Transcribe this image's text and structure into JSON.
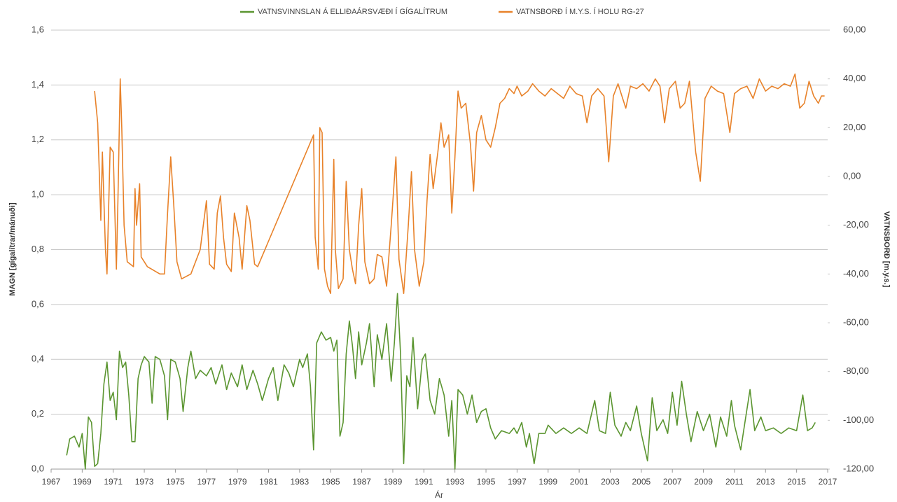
{
  "chart_data": {
    "type": "line",
    "xlabel": "Ár",
    "ylabel": "MAGN [gígalítrar/mánuði]",
    "y2label": "VATNSBORÐ [m.y.s.]",
    "xlim": [
      1967,
      2017
    ],
    "xticks": [
      1967,
      1969,
      1971,
      1973,
      1975,
      1977,
      1979,
      1981,
      1983,
      1985,
      1987,
      1989,
      1991,
      1993,
      1995,
      1997,
      1999,
      2001,
      2003,
      2005,
      2007,
      2009,
      2011,
      2013,
      2015,
      2017
    ],
    "ylim": [
      0,
      1.6
    ],
    "yticks": [
      {
        "value": 0,
        "label": "0,0"
      },
      {
        "value": 0.2,
        "label": "0,2"
      },
      {
        "value": 0.4,
        "label": "0,4"
      },
      {
        "value": 0.6,
        "label": "0,6"
      },
      {
        "value": 0.8,
        "label": "0,8"
      },
      {
        "value": 1.0,
        "label": "1,0"
      },
      {
        "value": 1.2,
        "label": "1,2"
      },
      {
        "value": 1.4,
        "label": "1,4"
      },
      {
        "value": 1.6,
        "label": "1,6"
      }
    ],
    "y2lim": [
      -120,
      60
    ],
    "y2ticks": [
      {
        "value": -120,
        "label": "-120,00"
      },
      {
        "value": -100,
        "label": "-100,00"
      },
      {
        "value": -80,
        "label": "-80,00"
      },
      {
        "value": -60,
        "label": "-60,00"
      },
      {
        "value": -40,
        "label": "-40,00"
      },
      {
        "value": -20,
        "label": "-20,00"
      },
      {
        "value": 0,
        "label": "0,00"
      },
      {
        "value": 20,
        "label": "20,00"
      },
      {
        "value": 40,
        "label": "40,00"
      },
      {
        "value": 60,
        "label": "60,00"
      }
    ],
    "grid": true,
    "legend": "top",
    "series": [
      {
        "name": "VATNSVINNSLAN Á ELLIÐAÁRSVÆÐI Í GÍGALÍTRUM",
        "color": "#5b9530",
        "axis": "y",
        "x": [
          1968.0,
          1968.2,
          1968.5,
          1968.8,
          1969.0,
          1969.2,
          1969.4,
          1969.6,
          1969.8,
          1970.0,
          1970.2,
          1970.4,
          1970.6,
          1970.8,
          1971.0,
          1971.2,
          1971.4,
          1971.6,
          1971.8,
          1972.0,
          1972.2,
          1972.4,
          1972.6,
          1972.8,
          1973.0,
          1973.3,
          1973.5,
          1973.7,
          1974.0,
          1974.3,
          1974.5,
          1974.7,
          1975.0,
          1975.3,
          1975.5,
          1975.8,
          1976.0,
          1976.3,
          1976.6,
          1977.0,
          1977.3,
          1977.6,
          1978.0,
          1978.3,
          1978.6,
          1979.0,
          1979.3,
          1979.6,
          1980.0,
          1980.3,
          1980.6,
          1981.0,
          1981.3,
          1981.6,
          1982.0,
          1982.3,
          1982.6,
          1983.0,
          1983.2,
          1983.5,
          1983.7,
          1983.9,
          1984.1,
          1984.4,
          1984.7,
          1985.0,
          1985.2,
          1985.4,
          1985.6,
          1985.8,
          1986.0,
          1986.2,
          1986.4,
          1986.6,
          1986.8,
          1987.0,
          1987.3,
          1987.5,
          1987.8,
          1988.0,
          1988.3,
          1988.6,
          1988.9,
          1989.1,
          1989.3,
          1989.5,
          1989.7,
          1989.9,
          1990.1,
          1990.3,
          1990.6,
          1990.9,
          1991.1,
          1991.4,
          1991.7,
          1992.0,
          1992.3,
          1992.6,
          1992.8,
          1993.0,
          1993.2,
          1993.5,
          1993.8,
          1994.1,
          1994.4,
          1994.7,
          1995.0,
          1995.3,
          1995.6,
          1996.0,
          1996.5,
          1996.8,
          1997.0,
          1997.3,
          1997.6,
          1997.8,
          1998.1,
          1998.4,
          1998.8,
          1999.0,
          1999.5,
          2000.0,
          2000.5,
          2001.0,
          2001.5,
          2002.0,
          2002.3,
          2002.7,
          2003.0,
          2003.3,
          2003.7,
          2004.0,
          2004.3,
          2004.7,
          2005.0,
          2005.4,
          2005.7,
          2006.0,
          2006.4,
          2006.7,
          2007.0,
          2007.3,
          2007.6,
          2007.9,
          2008.2,
          2008.6,
          2009.0,
          2009.4,
          2009.8,
          2010.1,
          2010.5,
          2010.8,
          2011.0,
          2011.4,
          2011.7,
          2012.0,
          2012.3,
          2012.7,
          2013.0,
          2013.5,
          2014.0,
          2014.5,
          2015.0,
          2015.4,
          2015.7,
          2016.0,
          2016.2
        ],
        "values": [
          0.05,
          0.11,
          0.12,
          0.08,
          0.13,
          0.0,
          0.19,
          0.17,
          0.01,
          0.02,
          0.13,
          0.31,
          0.39,
          0.25,
          0.28,
          0.18,
          0.43,
          0.37,
          0.39,
          0.27,
          0.1,
          0.1,
          0.33,
          0.38,
          0.41,
          0.39,
          0.24,
          0.41,
          0.4,
          0.34,
          0.18,
          0.4,
          0.39,
          0.33,
          0.21,
          0.37,
          0.43,
          0.33,
          0.36,
          0.34,
          0.37,
          0.31,
          0.38,
          0.29,
          0.35,
          0.3,
          0.38,
          0.29,
          0.36,
          0.31,
          0.25,
          0.33,
          0.37,
          0.25,
          0.38,
          0.35,
          0.3,
          0.4,
          0.37,
          0.42,
          0.3,
          0.07,
          0.46,
          0.5,
          0.47,
          0.48,
          0.43,
          0.47,
          0.12,
          0.17,
          0.42,
          0.54,
          0.45,
          0.33,
          0.5,
          0.38,
          0.46,
          0.53,
          0.3,
          0.49,
          0.4,
          0.53,
          0.32,
          0.46,
          0.64,
          0.42,
          0.02,
          0.34,
          0.3,
          0.48,
          0.22,
          0.4,
          0.42,
          0.25,
          0.2,
          0.33,
          0.27,
          0.12,
          0.25,
          0.0,
          0.29,
          0.27,
          0.2,
          0.27,
          0.17,
          0.21,
          0.22,
          0.15,
          0.11,
          0.14,
          0.13,
          0.15,
          0.13,
          0.17,
          0.08,
          0.13,
          0.02,
          0.13,
          0.13,
          0.16,
          0.13,
          0.15,
          0.13,
          0.15,
          0.13,
          0.25,
          0.14,
          0.13,
          0.28,
          0.16,
          0.12,
          0.17,
          0.14,
          0.23,
          0.13,
          0.03,
          0.26,
          0.14,
          0.18,
          0.13,
          0.28,
          0.16,
          0.32,
          0.2,
          0.1,
          0.21,
          0.14,
          0.2,
          0.08,
          0.19,
          0.12,
          0.25,
          0.16,
          0.07,
          0.18,
          0.29,
          0.14,
          0.19,
          0.14,
          0.15,
          0.13,
          0.15,
          0.14,
          0.27,
          0.14,
          0.15,
          0.17
        ]
      },
      {
        "name": "VATNSBORÐ Í M.Y.S. Í HOLU RG-27",
        "color": "#e8822a",
        "axis": "y2",
        "x": [
          1969.8,
          1970.0,
          1970.2,
          1970.3,
          1970.5,
          1970.6,
          1970.8,
          1971.0,
          1971.2,
          1971.3,
          1971.45,
          1971.55,
          1971.7,
          1971.9,
          1972.3,
          1972.4,
          1972.5,
          1972.7,
          1972.8,
          1973.2,
          1974.0,
          1974.3,
          1974.5,
          1974.7,
          1974.9,
          1975.1,
          1975.4,
          1976.0,
          1976.6,
          1977.0,
          1977.2,
          1977.5,
          1977.7,
          1977.9,
          1978.1,
          1978.3,
          1978.6,
          1978.8,
          1979.1,
          1979.3,
          1979.6,
          1979.8,
          1980.1,
          1980.3,
          1983.9,
          1984.0,
          1984.2,
          1984.3,
          1984.45,
          1984.6,
          1984.8,
          1985.0,
          1985.2,
          1985.3,
          1985.5,
          1985.8,
          1986.0,
          1986.2,
          1986.4,
          1986.6,
          1986.8,
          1987.0,
          1987.2,
          1987.5,
          1987.8,
          1988.0,
          1988.3,
          1988.6,
          1988.9,
          1989.2,
          1989.4,
          1989.7,
          1990.0,
          1990.2,
          1990.4,
          1990.7,
          1991.0,
          1991.2,
          1991.4,
          1991.6,
          1991.9,
          1992.1,
          1992.3,
          1992.6,
          1992.8,
          1993.0,
          1993.2,
          1993.4,
          1993.7,
          1994.0,
          1994.2,
          1994.4,
          1994.7,
          1995.0,
          1995.3,
          1995.6,
          1995.9,
          1996.2,
          1996.5,
          1996.8,
          1997.0,
          1997.3,
          1997.7,
          1998.0,
          1998.4,
          1998.8,
          1999.2,
          1999.6,
          2000.0,
          2000.4,
          2000.8,
          2001.2,
          2001.5,
          2001.8,
          2002.2,
          2002.6,
          2002.9,
          2003.2,
          2003.5,
          2003.7,
          2004.0,
          2004.3,
          2004.7,
          2005.1,
          2005.5,
          2005.9,
          2006.2,
          2006.5,
          2006.8,
          2007.2,
          2007.5,
          2007.8,
          2008.1,
          2008.5,
          2008.8,
          2009.1,
          2009.5,
          2009.9,
          2010.3,
          2010.7,
          2011.0,
          2011.4,
          2011.8,
          2012.2,
          2012.6,
          2013.0,
          2013.4,
          2013.8,
          2014.2,
          2014.6,
          2014.9,
          2015.2,
          2015.5,
          2015.8,
          2016.1,
          2016.4,
          2016.6,
          2016.8
        ],
        "values": [
          35,
          22,
          -18,
          10,
          -30,
          -40,
          12,
          10,
          -38,
          -10,
          40,
          20,
          -20,
          -35,
          -37,
          -5,
          -20,
          -3,
          -33,
          -37,
          -40,
          -40,
          -15,
          8,
          -12,
          -35,
          -42,
          -40,
          -30,
          -10,
          -36,
          -38,
          -15,
          -8,
          -25,
          -36,
          -39,
          -15,
          -25,
          -38,
          -12,
          -18,
          -36,
          -37,
          17,
          -25,
          -38,
          20,
          18,
          -38,
          -45,
          -48,
          7,
          -30,
          -46,
          -42,
          -2,
          -30,
          -38,
          -44,
          -20,
          -5,
          -35,
          -44,
          -42,
          -32,
          -33,
          -45,
          -20,
          8,
          -34,
          -48,
          -20,
          2,
          -30,
          -45,
          -35,
          -10,
          9,
          -5,
          10,
          22,
          12,
          17,
          -15,
          8,
          35,
          28,
          30,
          13,
          -6,
          18,
          25,
          15,
          12,
          20,
          30,
          32,
          36,
          34,
          37,
          33,
          35,
          38,
          35,
          33,
          36,
          34,
          32,
          37,
          34,
          33,
          22,
          33,
          36,
          33,
          6,
          33,
          38,
          34,
          28,
          37,
          36,
          38,
          35,
          40,
          37,
          22,
          36,
          39,
          28,
          30,
          39,
          10,
          -2,
          32,
          37,
          35,
          34,
          18,
          34,
          36,
          37,
          32,
          40,
          35,
          37,
          36,
          38,
          37,
          42,
          28,
          30,
          39,
          33,
          30,
          33,
          33
        ]
      }
    ]
  }
}
